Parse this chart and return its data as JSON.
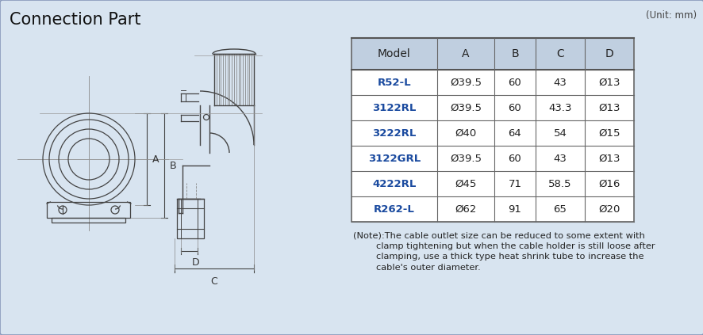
{
  "title": "Connection Part",
  "unit_text": "(Unit: mm)",
  "background_color": "#d8e4f0",
  "table_header_bg": "#c0cfe0",
  "table_header_text": "#222222",
  "table_model_color": "#1a4a9f",
  "table_data_color": "#222222",
  "table_border_color": "#555555",
  "columns": [
    "Model",
    "A",
    "B",
    "C",
    "D"
  ],
  "rows": [
    [
      "R52-L",
      "Ø39.5",
      "60",
      "43",
      "Ø13"
    ],
    [
      "3122RL",
      "Ø39.5",
      "60",
      "43.3",
      "Ø13"
    ],
    [
      "3222RL",
      "Ø40",
      "64",
      "54",
      "Ø15"
    ],
    [
      "3122GRL",
      "Ø39.5",
      "60",
      "43",
      "Ø13"
    ],
    [
      "4222RL",
      "Ø45",
      "71",
      "58.5",
      "Ø16"
    ],
    [
      "R262-L",
      "Ø62",
      "91",
      "65",
      "Ø20"
    ]
  ],
  "note_lines": [
    "(Note):The cable outlet size can be reduced to some extent with",
    "        clamp tightening but when the cable holder is still loose after",
    "        clamping, use a thick type heat shrink tube to increase the",
    "        cable's outer diameter."
  ],
  "diagram_line_color": "#444444",
  "title_fontsize": 15,
  "note_fontsize": 8.2
}
